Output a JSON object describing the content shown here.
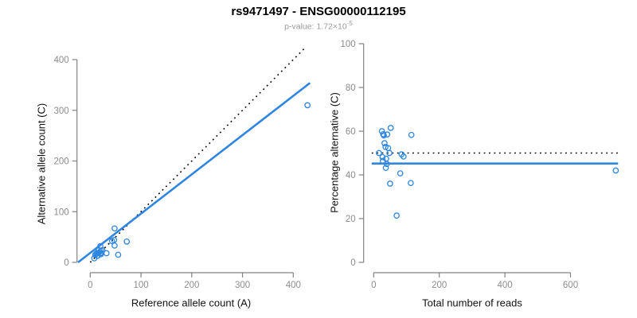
{
  "header": {
    "title": "rs9471497 - ENSG00000112195",
    "p_value_prefix": "p-value: 1.72×10",
    "p_value_exponent": "-5"
  },
  "colors": {
    "accent_blue": "#2E86E0",
    "dotted_line_black": "#000000",
    "axis_gray": "#828282",
    "tick_label_gray": "#8c8c8c",
    "subtitle_gray": "#9a9a9a"
  },
  "chart_data": [
    {
      "type": "scatter",
      "panel": "left",
      "xlabel": "Reference allele count (A)",
      "ylabel": "Alternative allele count (C)",
      "xticks": [
        0,
        100,
        200,
        300,
        400
      ],
      "yticks": [
        0,
        100,
        200,
        300,
        400
      ],
      "xlim": [
        -24,
        434
      ],
      "ylim": [
        0,
        432
      ],
      "grid": false,
      "legend": null,
      "points": [
        [
          10,
          15
        ],
        [
          13,
          18
        ],
        [
          12,
          17
        ],
        [
          20,
          32
        ],
        [
          17,
          24
        ],
        [
          48,
          67
        ],
        [
          15,
          18
        ],
        [
          17,
          19
        ],
        [
          21,
          23
        ],
        [
          8,
          8
        ],
        [
          24,
          24
        ],
        [
          43,
          42
        ],
        [
          14,
          13
        ],
        [
          15,
          13
        ],
        [
          47,
          44
        ],
        [
          20,
          18
        ],
        [
          22,
          18
        ],
        [
          21,
          16
        ],
        [
          48,
          33
        ],
        [
          32,
          18
        ],
        [
          72,
          41
        ],
        [
          55,
          15
        ],
        [
          428,
          310
        ]
      ],
      "lines": [
        {
          "name": "identity-line",
          "style": "dotted",
          "color": "#000000",
          "x1": 0,
          "y1": 0,
          "x2": 424,
          "y2": 424
        },
        {
          "name": "fit-line",
          "style": "solid",
          "color": "#2E86E0",
          "x1": -24,
          "y1": 0,
          "x2": 433,
          "y2": 354
        }
      ]
    },
    {
      "type": "scatter",
      "panel": "right",
      "xlabel": "Total number of reads",
      "ylabel": "Percentage alternative (C)",
      "xticks": [
        0,
        200,
        400,
        600
      ],
      "yticks": [
        0,
        20,
        40,
        60,
        80,
        100
      ],
      "xlim": [
        -6,
        745
      ],
      "ylim": [
        0,
        100
      ],
      "grid": false,
      "legend": null,
      "points": [
        [
          25,
          60.0
        ],
        [
          31,
          58.1
        ],
        [
          29,
          58.6
        ],
        [
          52,
          61.5
        ],
        [
          41,
          58.5
        ],
        [
          115,
          58.3
        ],
        [
          33,
          54.5
        ],
        [
          36,
          52.8
        ],
        [
          44,
          52.3
        ],
        [
          16,
          50.0
        ],
        [
          48,
          50.0
        ],
        [
          85,
          49.4
        ],
        [
          27,
          48.1
        ],
        [
          28,
          46.4
        ],
        [
          91,
          48.4
        ],
        [
          38,
          47.4
        ],
        [
          40,
          45.0
        ],
        [
          37,
          43.2
        ],
        [
          81,
          40.7
        ],
        [
          50,
          36.0
        ],
        [
          113,
          36.3
        ],
        [
          70,
          21.4
        ],
        [
          738,
          42.0
        ]
      ],
      "lines": [
        {
          "name": "expected-50pct-line",
          "style": "dotted",
          "color": "#000000",
          "x1": -6,
          "y1": 50,
          "x2": 745,
          "y2": 50
        },
        {
          "name": "fit-line",
          "style": "solid",
          "color": "#2E86E0",
          "x1": -6,
          "y1": 45.2,
          "x2": 745,
          "y2": 45.2
        }
      ]
    }
  ]
}
